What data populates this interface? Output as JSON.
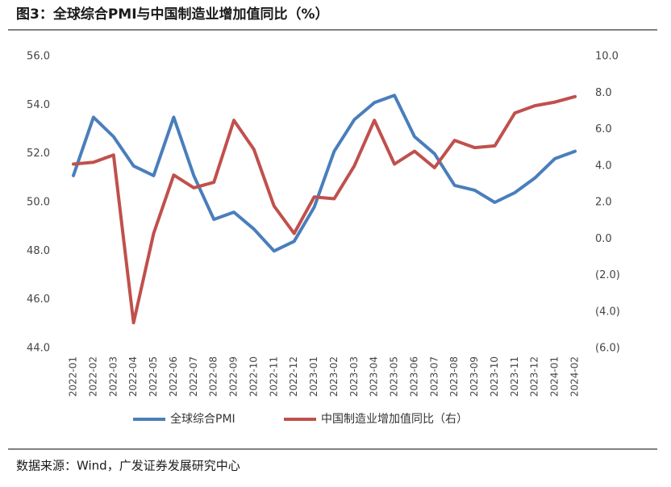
{
  "chart_data": {
    "type": "line",
    "title": "图3：全球综合PMI与中国制造业增加值同比（%）",
    "source": "数据来源：Wind，广发证券发展研究中心",
    "categories": [
      "2022-01",
      "2022-02",
      "2022-03",
      "2022-04",
      "2022-05",
      "2022-06",
      "2022-07",
      "2022-08",
      "2022-09",
      "2022-10",
      "2022-11",
      "2022-12",
      "2023-01",
      "2023-02",
      "2023-03",
      "2023-04",
      "2023-05",
      "2023-06",
      "2023-07",
      "2023-08",
      "2023-09",
      "2023-10",
      "2023-11",
      "2023-12",
      "2024-01",
      "2024-02"
    ],
    "ylim": [
      44,
      56
    ],
    "yticks": [
      {
        "value": 44,
        "label": "44.0"
      },
      {
        "value": 46,
        "label": "46.0"
      },
      {
        "value": 48,
        "label": "48.0"
      },
      {
        "value": 50,
        "label": "50.0"
      },
      {
        "value": 52,
        "label": "52.0"
      },
      {
        "value": 54,
        "label": "54.0"
      },
      {
        "value": 56,
        "label": "56.0"
      }
    ],
    "y2lim": [
      -6,
      10
    ],
    "y2ticks": [
      {
        "value": -6,
        "label": "(6.0)"
      },
      {
        "value": -4,
        "label": "(4.0)"
      },
      {
        "value": -2,
        "label": "(2.0)"
      },
      {
        "value": 0,
        "label": "0.0"
      },
      {
        "value": 2,
        "label": "2.0"
      },
      {
        "value": 4,
        "label": "4.0"
      },
      {
        "value": 6,
        "label": "6.0"
      },
      {
        "value": 8,
        "label": "8.0"
      },
      {
        "value": 10,
        "label": "10.0"
      }
    ],
    "series": [
      {
        "name": "全球综合PMI",
        "color": "#4a7ebb",
        "values": [
          51.1,
          53.5,
          52.7,
          51.5,
          51.1,
          53.5,
          51.1,
          49.3,
          49.6,
          48.9,
          48.0,
          48.4,
          49.8,
          52.1,
          53.4,
          54.1,
          54.4,
          52.7,
          52.0,
          50.7,
          50.5,
          50.0,
          50.4,
          51.0,
          51.8,
          52.1
        ]
      },
      {
        "name": "中国制造业增加值同比（右）",
        "color": "#c0504d",
        "axis": "y2",
        "values": [
          4.1,
          4.2,
          4.6,
          -4.6,
          0.3,
          3.5,
          2.8,
          3.1,
          6.5,
          4.9,
          1.8,
          0.3,
          2.3,
          2.2,
          4.0,
          6.5,
          4.1,
          4.8,
          3.9,
          5.4,
          5.0,
          5.1,
          6.9,
          7.3,
          7.5,
          7.8
        ]
      }
    ]
  }
}
